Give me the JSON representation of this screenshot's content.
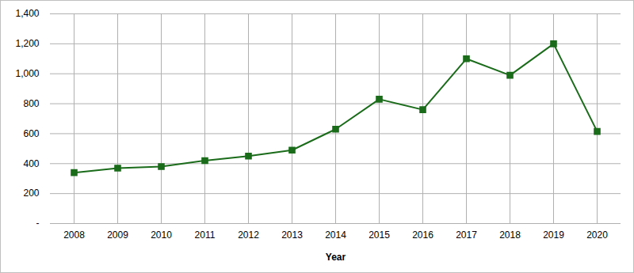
{
  "chart_data": {
    "type": "line",
    "x_label": "Year",
    "categories": [
      "2008",
      "2009",
      "2010",
      "2011",
      "2012",
      "2013",
      "2014",
      "2015",
      "2016",
      "2017",
      "2018",
      "2019",
      "2020"
    ],
    "values": [
      340,
      370,
      380,
      420,
      450,
      490,
      630,
      830,
      760,
      1100,
      990,
      1200,
      615
    ],
    "color": "#1a6b1a",
    "marker": "square",
    "ylim": [
      0,
      1400
    ],
    "yticks": [
      {
        "value": 0,
        "label": "-"
      },
      200,
      400,
      600,
      800,
      {
        "value": 1000,
        "label": "1,000"
      },
      {
        "value": 1200,
        "label": "1,200"
      },
      {
        "value": 1400,
        "label": "1,400"
      }
    ],
    "grid": true
  }
}
